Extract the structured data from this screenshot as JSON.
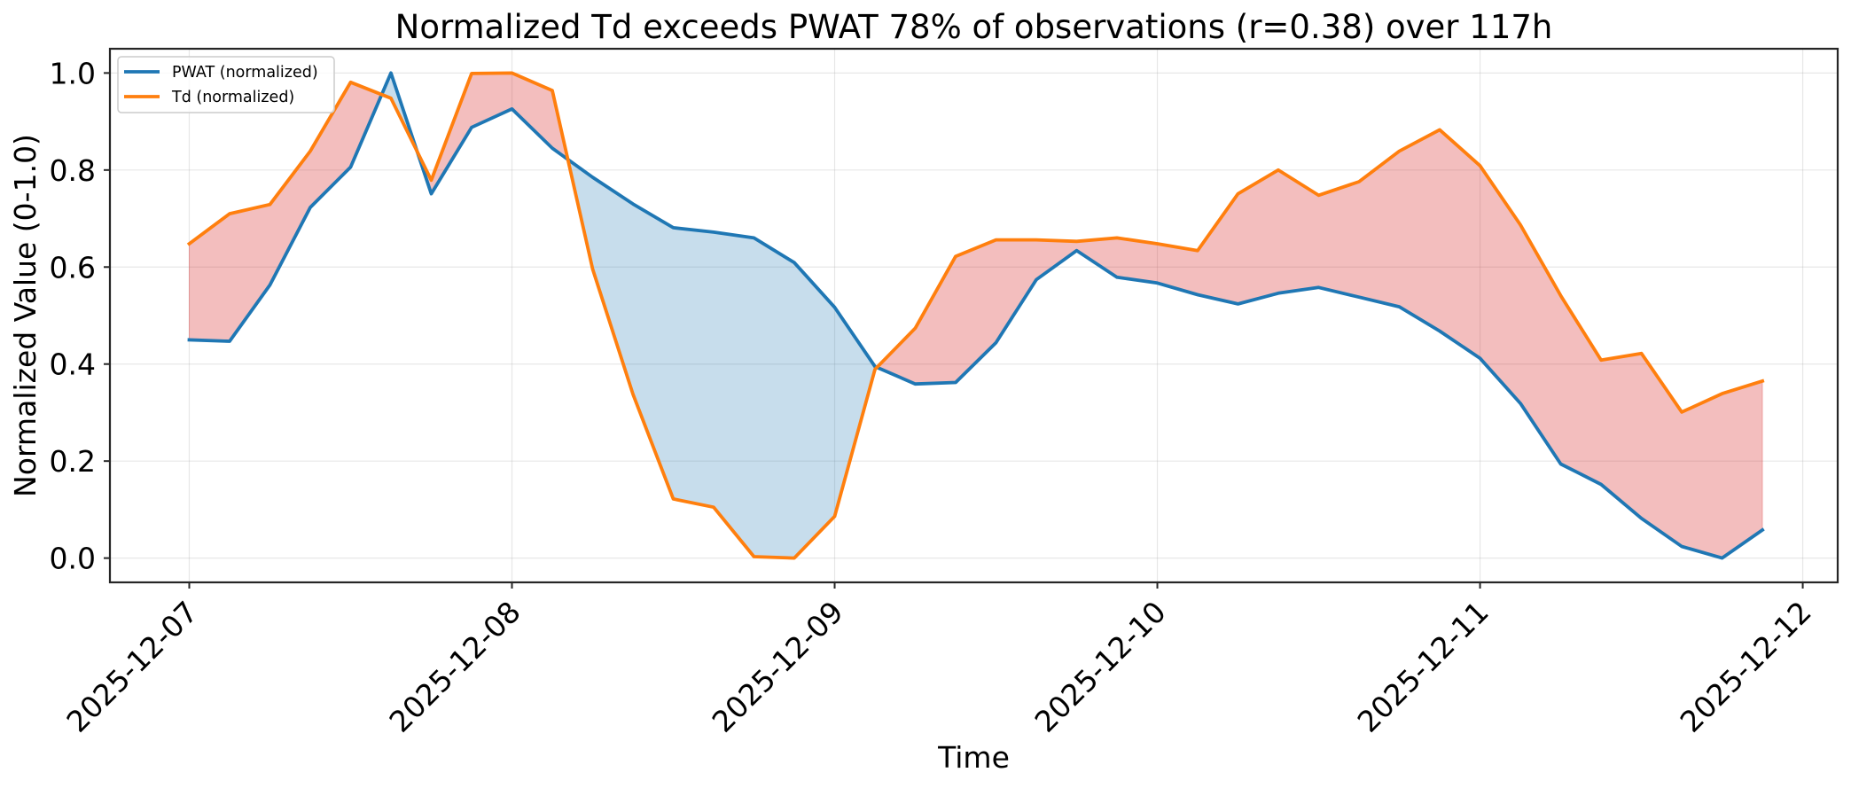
{
  "chart_data": {
    "type": "line",
    "title": "Normalized Td exceeds PWAT 78% of observations (r=0.38) over 117h",
    "xlabel": "Time",
    "ylabel": "Normalized Value (0-1.0)",
    "x_start": "2025-12-07 00:00",
    "x_step_hours": 3,
    "x_hours": [
      0,
      3,
      6,
      9,
      12,
      15,
      18,
      21,
      24,
      27,
      30,
      33,
      36,
      39,
      42,
      45,
      48,
      51,
      54,
      57,
      60,
      63,
      66,
      69,
      72,
      75,
      78,
      81,
      84,
      87,
      90,
      93,
      96,
      99,
      102,
      105,
      108,
      111,
      114,
      117
    ],
    "xlim_hours": [
      -5.9,
      122.6
    ],
    "ylim": [
      -0.05,
      1.05
    ],
    "xticks": [
      {
        "hours": 0,
        "label": "2025-12-07"
      },
      {
        "hours": 24,
        "label": "2025-12-08"
      },
      {
        "hours": 48,
        "label": "2025-12-09"
      },
      {
        "hours": 72,
        "label": "2025-12-10"
      },
      {
        "hours": 96,
        "label": "2025-12-11"
      },
      {
        "hours": 120,
        "label": "2025-12-12"
      }
    ],
    "yticks": [
      {
        "value": 0.0,
        "label": "0.0"
      },
      {
        "value": 0.2,
        "label": "0.2"
      },
      {
        "value": 0.4,
        "label": "0.4"
      },
      {
        "value": 0.6,
        "label": "0.6"
      },
      {
        "value": 0.8,
        "label": "0.8"
      },
      {
        "value": 1.0,
        "label": "1.0"
      }
    ],
    "grid": true,
    "legend_position": "top-left",
    "series": [
      {
        "name": "PWAT (normalized)",
        "color": "#1f77b4",
        "values": [
          0.45,
          0.447,
          0.563,
          0.723,
          0.806,
          1.0,
          0.751,
          0.888,
          0.926,
          0.845,
          0.785,
          0.73,
          0.681,
          0.672,
          0.66,
          0.609,
          0.517,
          0.395,
          0.359,
          0.362,
          0.444,
          0.574,
          0.634,
          0.579,
          0.567,
          0.543,
          0.524,
          0.546,
          0.558,
          0.538,
          0.518,
          0.468,
          0.412,
          0.319,
          0.194,
          0.152,
          0.082,
          0.024,
          0.0,
          0.058
        ]
      },
      {
        "name": "Td (normalized)",
        "color": "#ff7f0e",
        "values": [
          0.648,
          0.71,
          0.729,
          0.839,
          0.981,
          0.948,
          0.779,
          0.999,
          1.0,
          0.964,
          0.596,
          0.338,
          0.122,
          0.105,
          0.003,
          0.0,
          0.086,
          0.389,
          0.474,
          0.622,
          0.656,
          0.656,
          0.653,
          0.66,
          0.648,
          0.634,
          0.751,
          0.8,
          0.748,
          0.776,
          0.839,
          0.883,
          0.809,
          0.687,
          0.541,
          0.408,
          0.422,
          0.301,
          0.339,
          0.365
        ]
      }
    ],
    "fill_between": [
      {
        "condition": "Td > PWAT",
        "color": "#d62728",
        "opacity": 0.3
      },
      {
        "condition": "Td <= PWAT",
        "color": "#1f77b4",
        "opacity": 0.25
      }
    ]
  }
}
